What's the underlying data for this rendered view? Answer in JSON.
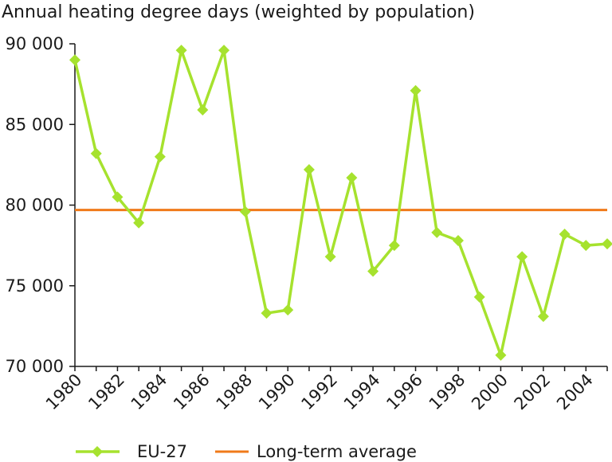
{
  "colors": {
    "series": "#a6e22e",
    "average": "#f07a1a",
    "axis": "#1a1a1a"
  },
  "chart_data": {
    "type": "line",
    "title": "Annual heating degree days (weighted by population)",
    "xlabel": "",
    "ylabel": "",
    "xlim": [
      1980,
      2005
    ],
    "ylim": [
      70000,
      90000
    ],
    "yticks": [
      70000,
      75000,
      80000,
      85000,
      90000
    ],
    "ytick_labels": [
      "70 000",
      "75 000",
      "80 000",
      "85 000",
      "90 000"
    ],
    "xticks": [
      1980,
      1982,
      1984,
      1986,
      1988,
      1990,
      1992,
      1994,
      1996,
      1998,
      2000,
      2002,
      2004
    ],
    "xtick_labels": [
      "1980",
      "1982",
      "1984",
      "1986",
      "1988",
      "1990",
      "1992",
      "1994",
      "1996",
      "1998",
      "2000",
      "2002",
      "2004"
    ],
    "grid": false,
    "legend_position": "bottom",
    "series": [
      {
        "name": "EU-27",
        "marker": "diamond",
        "x": [
          1980,
          1981,
          1982,
          1983,
          1984,
          1985,
          1986,
          1987,
          1988,
          1989,
          1990,
          1991,
          1992,
          1993,
          1994,
          1995,
          1996,
          1997,
          1998,
          1999,
          2000,
          2001,
          2002,
          2003,
          2004,
          2005
        ],
        "values": [
          89000,
          83200,
          80500,
          78900,
          83000,
          89600,
          85900,
          89600,
          79600,
          73300,
          73500,
          82200,
          76800,
          81700,
          75900,
          77500,
          87100,
          78300,
          77800,
          74300,
          70700,
          76800,
          73100,
          78200,
          77500,
          77600
        ]
      }
    ],
    "reference_line": {
      "name": "Long-term average",
      "value": 79700
    }
  }
}
